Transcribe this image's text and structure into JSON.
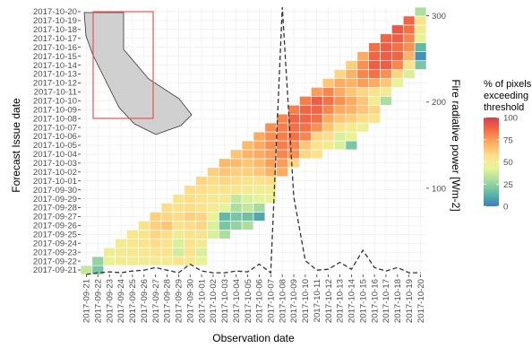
{
  "chart_data": {
    "type": "heatmap",
    "title": "",
    "xlabel": "Observation date",
    "ylabel": "Forecast Issue date",
    "y2label": "Fire radiative power [Wm-2]",
    "x_dates": [
      "2017-09-21",
      "2017-09-22",
      "2017-09-23",
      "2017-09-24",
      "2017-09-25",
      "2017-09-26",
      "2017-09-27",
      "2017-09-28",
      "2017-09-29",
      "2017-09-30",
      "2017-10-01",
      "2017-10-02",
      "2017-10-03",
      "2017-10-04",
      "2017-10-05",
      "2017-10-06",
      "2017-10-07",
      "2017-10-08",
      "2017-10-09",
      "2017-10-10",
      "2017-10-11",
      "2017-10-12",
      "2017-10-13",
      "2017-10-14",
      "2017-10-15",
      "2017-10-16",
      "2017-10-17",
      "2017-10-18",
      "2017-10-19",
      "2017-10-20"
    ],
    "y_dates": [
      "2017-09-21",
      "2017-09-22",
      "2017-09-23",
      "2017-09-24",
      "2017-09-25",
      "2017-09-26",
      "2017-09-27",
      "2017-09-28",
      "2017-09-29",
      "2017-09-30",
      "2017-10-01",
      "2017-10-02",
      "2017-10-03",
      "2017-10-04",
      "2017-10-05",
      "2017-10-06",
      "2017-10-07",
      "2017-10-08",
      "2017-10-09",
      "2017-10-10",
      "2017-10-11",
      "2017-10-12",
      "2017-10-13",
      "2017-10-14",
      "2017-10-15",
      "2017-10-16",
      "2017-10-17",
      "2017-10-18",
      "2017-10-19",
      "2017-10-20"
    ],
    "cells": [
      [
        0,
        0,
        35
      ],
      [
        1,
        0,
        20
      ],
      [
        1,
        1,
        25
      ],
      [
        2,
        1,
        45
      ],
      [
        3,
        1,
        50
      ],
      [
        4,
        1,
        50
      ],
      [
        5,
        1,
        50
      ],
      [
        6,
        1,
        50
      ],
      [
        7,
        1,
        50
      ],
      [
        8,
        1,
        55
      ],
      [
        9,
        1,
        52
      ],
      [
        10,
        1,
        45
      ],
      [
        2,
        2,
        48
      ],
      [
        3,
        2,
        50
      ],
      [
        4,
        2,
        52
      ],
      [
        5,
        2,
        52
      ],
      [
        6,
        2,
        55
      ],
      [
        7,
        2,
        55
      ],
      [
        8,
        2,
        38
      ],
      [
        9,
        2,
        55
      ],
      [
        10,
        2,
        40
      ],
      [
        3,
        3,
        50
      ],
      [
        4,
        3,
        52
      ],
      [
        5,
        3,
        55
      ],
      [
        6,
        3,
        58
      ],
      [
        7,
        3,
        55
      ],
      [
        8,
        3,
        40
      ],
      [
        9,
        3,
        55
      ],
      [
        10,
        3,
        50
      ],
      [
        4,
        4,
        52
      ],
      [
        5,
        4,
        55
      ],
      [
        6,
        4,
        60
      ],
      [
        7,
        4,
        58
      ],
      [
        8,
        4,
        50
      ],
      [
        9,
        4,
        55
      ],
      [
        10,
        4,
        55
      ],
      [
        11,
        4,
        40
      ],
      [
        12,
        4,
        30
      ],
      [
        5,
        5,
        55
      ],
      [
        6,
        5,
        62
      ],
      [
        7,
        5,
        65
      ],
      [
        8,
        5,
        55
      ],
      [
        9,
        5,
        58
      ],
      [
        10,
        5,
        60
      ],
      [
        11,
        5,
        40
      ],
      [
        12,
        5,
        20
      ],
      [
        13,
        5,
        25
      ],
      [
        14,
        5,
        30
      ],
      [
        6,
        6,
        62
      ],
      [
        7,
        6,
        60
      ],
      [
        8,
        6,
        58
      ],
      [
        9,
        6,
        62
      ],
      [
        10,
        6,
        60
      ],
      [
        11,
        6,
        45
      ],
      [
        12,
        6,
        15
      ],
      [
        13,
        6,
        20
      ],
      [
        14,
        6,
        18
      ],
      [
        15,
        6,
        10
      ],
      [
        7,
        7,
        58
      ],
      [
        8,
        7,
        55
      ],
      [
        9,
        7,
        58
      ],
      [
        10,
        7,
        55
      ],
      [
        11,
        7,
        50
      ],
      [
        12,
        7,
        42
      ],
      [
        13,
        7,
        30
      ],
      [
        14,
        7,
        35
      ],
      [
        15,
        7,
        28
      ],
      [
        8,
        8,
        55
      ],
      [
        9,
        8,
        58
      ],
      [
        10,
        8,
        55
      ],
      [
        11,
        8,
        52
      ],
      [
        12,
        8,
        52
      ],
      [
        13,
        8,
        35
      ],
      [
        14,
        8,
        40
      ],
      [
        15,
        8,
        42
      ],
      [
        16,
        8,
        45
      ],
      [
        9,
        9,
        58
      ],
      [
        10,
        9,
        58
      ],
      [
        11,
        9,
        55
      ],
      [
        12,
        9,
        55
      ],
      [
        13,
        9,
        52
      ],
      [
        14,
        9,
        50
      ],
      [
        15,
        9,
        48
      ],
      [
        16,
        9,
        50
      ],
      [
        10,
        10,
        60
      ],
      [
        11,
        10,
        58
      ],
      [
        12,
        10,
        60
      ],
      [
        13,
        10,
        58
      ],
      [
        14,
        10,
        55
      ],
      [
        15,
        10,
        55
      ],
      [
        16,
        10,
        58
      ],
      [
        11,
        11,
        62
      ],
      [
        12,
        11,
        65
      ],
      [
        13,
        11,
        62
      ],
      [
        14,
        11,
        62
      ],
      [
        15,
        11,
        65
      ],
      [
        16,
        11,
        70
      ],
      [
        17,
        11,
        72
      ],
      [
        12,
        12,
        68
      ],
      [
        13,
        12,
        68
      ],
      [
        14,
        12,
        65
      ],
      [
        15,
        12,
        68
      ],
      [
        16,
        12,
        75
      ],
      [
        17,
        12,
        75
      ],
      [
        18,
        12,
        60
      ],
      [
        13,
        13,
        65
      ],
      [
        14,
        13,
        70
      ],
      [
        15,
        13,
        72
      ],
      [
        16,
        13,
        75
      ],
      [
        17,
        13,
        80
      ],
      [
        18,
        13,
        78
      ],
      [
        19,
        13,
        60
      ],
      [
        20,
        13,
        55
      ],
      [
        14,
        14,
        68
      ],
      [
        15,
        14,
        72
      ],
      [
        16,
        14,
        78
      ],
      [
        17,
        14,
        82
      ],
      [
        18,
        14,
        80
      ],
      [
        19,
        14,
        65
      ],
      [
        20,
        14,
        55
      ],
      [
        21,
        14,
        50
      ],
      [
        22,
        14,
        40
      ],
      [
        23,
        14,
        20
      ],
      [
        15,
        15,
        72
      ],
      [
        16,
        15,
        78
      ],
      [
        17,
        15,
        82
      ],
      [
        18,
        15,
        85
      ],
      [
        19,
        15,
        80
      ],
      [
        20,
        15,
        60
      ],
      [
        21,
        15,
        58
      ],
      [
        22,
        15,
        40
      ],
      [
        23,
        15,
        45
      ],
      [
        16,
        16,
        78
      ],
      [
        17,
        16,
        82
      ],
      [
        18,
        16,
        85
      ],
      [
        19,
        16,
        85
      ],
      [
        20,
        16,
        78
      ],
      [
        21,
        16,
        65
      ],
      [
        22,
        16,
        55
      ],
      [
        23,
        16,
        50
      ],
      [
        24,
        16,
        45
      ],
      [
        17,
        17,
        80
      ],
      [
        18,
        17,
        88
      ],
      [
        19,
        17,
        88
      ],
      [
        20,
        17,
        85
      ],
      [
        21,
        17,
        72
      ],
      [
        22,
        17,
        65
      ],
      [
        23,
        17,
        62
      ],
      [
        24,
        17,
        58
      ],
      [
        25,
        17,
        55
      ],
      [
        18,
        18,
        82
      ],
      [
        19,
        18,
        88
      ],
      [
        20,
        18,
        88
      ],
      [
        21,
        18,
        80
      ],
      [
        22,
        18,
        72
      ],
      [
        23,
        18,
        70
      ],
      [
        24,
        18,
        65
      ],
      [
        25,
        18,
        60
      ],
      [
        19,
        19,
        82
      ],
      [
        20,
        19,
        90
      ],
      [
        21,
        19,
        85
      ],
      [
        22,
        19,
        78
      ],
      [
        23,
        19,
        72
      ],
      [
        24,
        19,
        65
      ],
      [
        25,
        19,
        50
      ],
      [
        26,
        19,
        30
      ],
      [
        20,
        20,
        75
      ],
      [
        21,
        20,
        80
      ],
      [
        22,
        20,
        72
      ],
      [
        23,
        20,
        65
      ],
      [
        24,
        20,
        60
      ],
      [
        25,
        20,
        55
      ],
      [
        26,
        20,
        50
      ],
      [
        21,
        21,
        65
      ],
      [
        22,
        21,
        72
      ],
      [
        23,
        21,
        70
      ],
      [
        24,
        21,
        75
      ],
      [
        25,
        21,
        72
      ],
      [
        26,
        21,
        65
      ],
      [
        27,
        21,
        45
      ],
      [
        22,
        22,
        60
      ],
      [
        23,
        22,
        70
      ],
      [
        24,
        22,
        80
      ],
      [
        25,
        22,
        85
      ],
      [
        26,
        22,
        78
      ],
      [
        27,
        22,
        60
      ],
      [
        28,
        22,
        40
      ],
      [
        23,
        23,
        62
      ],
      [
        24,
        23,
        78
      ],
      [
        25,
        23,
        90
      ],
      [
        26,
        23,
        90
      ],
      [
        27,
        23,
        80
      ],
      [
        28,
        23,
        55
      ],
      [
        29,
        23,
        20
      ],
      [
        24,
        24,
        72
      ],
      [
        25,
        24,
        88
      ],
      [
        26,
        24,
        90
      ],
      [
        27,
        24,
        88
      ],
      [
        28,
        24,
        70
      ],
      [
        29,
        24,
        5
      ],
      [
        25,
        25,
        85
      ],
      [
        26,
        25,
        90
      ],
      [
        27,
        25,
        85
      ],
      [
        28,
        25,
        78
      ],
      [
        29,
        25,
        15
      ],
      [
        26,
        26,
        88
      ],
      [
        27,
        26,
        90
      ],
      [
        28,
        26,
        80
      ],
      [
        29,
        26,
        45
      ],
      [
        27,
        27,
        92
      ],
      [
        28,
        27,
        85
      ],
      [
        29,
        27,
        50
      ],
      [
        28,
        28,
        88
      ],
      [
        29,
        28,
        55
      ],
      [
        29,
        29,
        30
      ]
    ],
    "frp": {
      "x": [
        0,
        1,
        2,
        3,
        4,
        5,
        6,
        7,
        8,
        9,
        10,
        11,
        12,
        13,
        14,
        15,
        16,
        17,
        18,
        19,
        20,
        21,
        22,
        23,
        24,
        25,
        26,
        27,
        28,
        29
      ],
      "y": [
        0,
        2,
        3,
        2,
        4,
        5,
        8,
        5,
        2,
        12,
        4,
        2,
        2,
        4,
        3,
        12,
        2,
        310,
        90,
        16,
        5,
        6,
        14,
        6,
        28,
        8,
        4,
        8,
        2,
        2
      ],
      "y2lim": [
        0,
        310
      ],
      "y2ticks": [
        100,
        200,
        300
      ]
    },
    "legend": {
      "title_lines": [
        "% of pixels",
        "exceeding",
        "threshold"
      ],
      "ticks": [
        100,
        75,
        50,
        25,
        0
      ],
      "placement": "right"
    },
    "inset_map": "California outline with red box over northern California",
    "colors": {
      "scale": [
        "#3A7DBD",
        "#5DB8A6",
        "#A6DBA0",
        "#E6F598",
        "#FEE08B",
        "#FDAE61",
        "#F46D43",
        "#D53E4F"
      ],
      "frp_line": "#333333",
      "inset_box": "#F05050",
      "grid": "#EBEBEB",
      "state": "#D0D0D0"
    }
  }
}
